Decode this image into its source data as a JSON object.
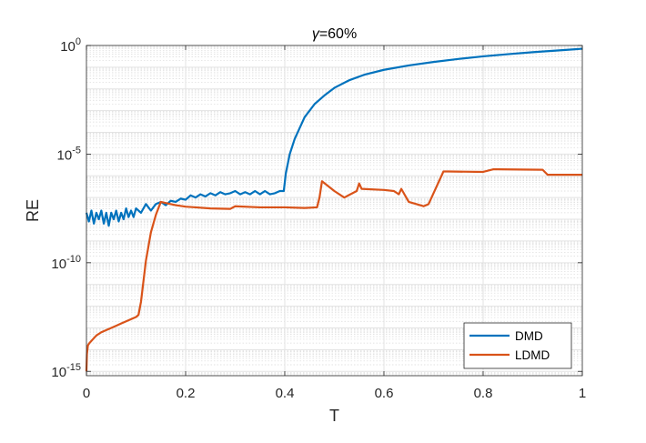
{
  "chart_data": {
    "type": "line",
    "title": {
      "greek": "γ",
      "rest": "=60%"
    },
    "xlabel": "T",
    "ylabel": "RE",
    "xlim": [
      0,
      1
    ],
    "ylim_log10": [
      -15.2,
      0
    ],
    "yscale": "log",
    "grid": true,
    "x_ticks": [
      "0",
      "0.2",
      "0.4",
      "0.6",
      "0.8",
      "1"
    ],
    "x_tick_values": [
      0,
      0.2,
      0.4,
      0.6,
      0.8,
      1
    ],
    "y_ticks": [
      {
        "base": "10",
        "exp": "0",
        "log10": 0
      },
      {
        "base": "10",
        "exp": "-5",
        "log10": -5
      },
      {
        "base": "10",
        "exp": "-10",
        "log10": -10
      },
      {
        "base": "10",
        "exp": "-15",
        "log10": -15
      }
    ],
    "legend_position": "bottom-right",
    "series": [
      {
        "name": "DMD",
        "color": "#0072BD",
        "x": [
          0,
          0.005,
          0.01,
          0.015,
          0.02,
          0.025,
          0.03,
          0.035,
          0.04,
          0.045,
          0.05,
          0.055,
          0.06,
          0.065,
          0.07,
          0.075,
          0.08,
          0.085,
          0.09,
          0.095,
          0.1,
          0.11,
          0.12,
          0.13,
          0.14,
          0.15,
          0.16,
          0.17,
          0.18,
          0.19,
          0.2,
          0.21,
          0.22,
          0.23,
          0.24,
          0.25,
          0.26,
          0.27,
          0.28,
          0.29,
          0.3,
          0.31,
          0.32,
          0.33,
          0.34,
          0.35,
          0.36,
          0.37,
          0.38,
          0.39,
          0.398,
          0.4,
          0.402,
          0.41,
          0.42,
          0.44,
          0.46,
          0.48,
          0.5,
          0.53,
          0.56,
          0.6,
          0.65,
          0.7,
          0.75,
          0.8,
          0.85,
          0.9,
          0.95,
          1.0
        ],
        "log10_y": [
          -7.7,
          -8.1,
          -7.6,
          -8.2,
          -7.7,
          -8.0,
          -7.6,
          -8.2,
          -7.7,
          -8.3,
          -7.7,
          -8.0,
          -7.6,
          -8.1,
          -7.7,
          -8.0,
          -7.5,
          -7.9,
          -7.6,
          -7.9,
          -7.5,
          -7.7,
          -7.3,
          -7.6,
          -7.3,
          -7.2,
          -7.35,
          -7.15,
          -7.2,
          -7.05,
          -7.1,
          -6.9,
          -7.0,
          -6.85,
          -6.95,
          -6.8,
          -6.9,
          -6.75,
          -6.85,
          -6.8,
          -6.7,
          -6.85,
          -6.75,
          -6.85,
          -6.7,
          -6.85,
          -6.7,
          -6.85,
          -6.8,
          -6.7,
          -6.7,
          -6.3,
          -5.9,
          -5.0,
          -4.3,
          -3.3,
          -2.7,
          -2.3,
          -1.95,
          -1.6,
          -1.35,
          -1.12,
          -0.92,
          -0.76,
          -0.62,
          -0.5,
          -0.4,
          -0.31,
          -0.23,
          -0.15
        ]
      },
      {
        "name": "LDMD",
        "color": "#D95319",
        "x": [
          0,
          0.001,
          0.003,
          0.006,
          0.01,
          0.02,
          0.03,
          0.04,
          0.05,
          0.06,
          0.07,
          0.08,
          0.09,
          0.1,
          0.105,
          0.11,
          0.12,
          0.13,
          0.14,
          0.15,
          0.16,
          0.18,
          0.2,
          0.22,
          0.25,
          0.29,
          0.3,
          0.35,
          0.4,
          0.44,
          0.465,
          0.47,
          0.475,
          0.5,
          0.52,
          0.545,
          0.55,
          0.555,
          0.6,
          0.62,
          0.63,
          0.635,
          0.65,
          0.68,
          0.69,
          0.72,
          0.73,
          0.8,
          0.82,
          0.83,
          0.92,
          0.93,
          1.0
        ],
        "log10_y": [
          -15.0,
          -14.2,
          -13.8,
          -13.7,
          -13.6,
          -13.35,
          -13.2,
          -13.1,
          -13.0,
          -12.9,
          -12.8,
          -12.7,
          -12.6,
          -12.5,
          -12.4,
          -11.8,
          -9.9,
          -8.6,
          -7.8,
          -7.2,
          -7.25,
          -7.35,
          -7.42,
          -7.45,
          -7.5,
          -7.52,
          -7.4,
          -7.45,
          -7.45,
          -7.48,
          -7.45,
          -7.0,
          -6.25,
          -6.7,
          -7.0,
          -6.7,
          -6.35,
          -6.6,
          -6.65,
          -6.7,
          -6.85,
          -6.6,
          -7.2,
          -7.4,
          -7.3,
          -5.8,
          -5.8,
          -5.82,
          -5.7,
          -5.7,
          -5.72,
          -5.95,
          -5.95
        ]
      }
    ]
  }
}
